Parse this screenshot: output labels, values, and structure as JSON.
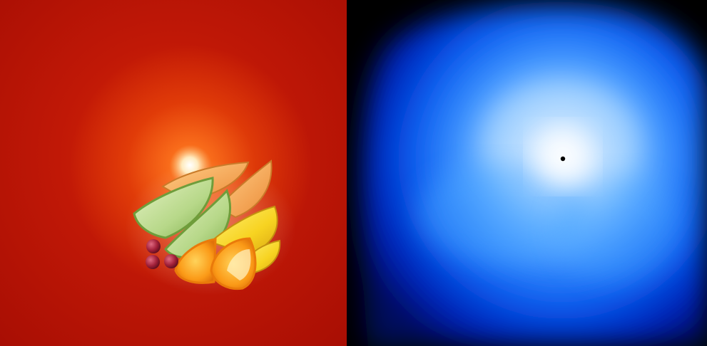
{
  "panels": [
    {
      "id": "left",
      "subject": "fruit-arrangement",
      "colors": {
        "background": "#b51205",
        "glow": "#ff7a1a",
        "melon_green": "#b9d98a",
        "cantaloupe": "#f3a857",
        "orange": "#f79a16",
        "pineapple": "#f6d21c",
        "grape": "#a3213a"
      }
    },
    {
      "id": "right",
      "subject": "blue-heatmap",
      "colors": {
        "background": "#000000",
        "outer": "#0016a8",
        "mid": "#0a6aff",
        "inner": "#8ecbff",
        "core": "#ffffff",
        "marker": "#000000"
      }
    }
  ]
}
